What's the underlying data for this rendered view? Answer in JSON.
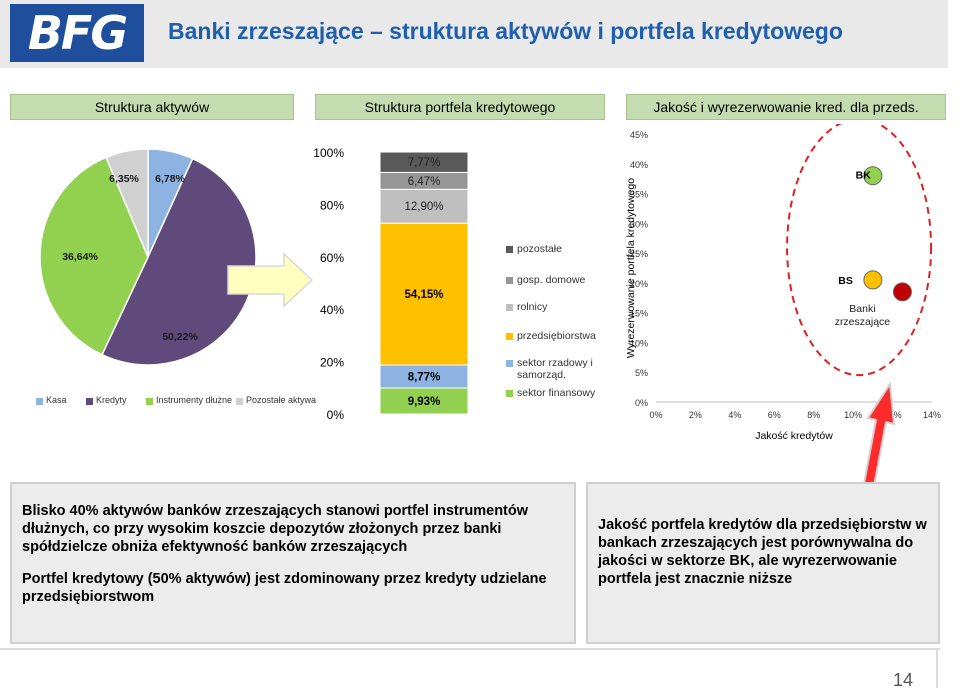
{
  "header": {
    "logo_text": "BFG",
    "title": "Banki zrzeszające – struktura aktywów i portfela kredytowego"
  },
  "section_headers": [
    "Struktura aktywów",
    "Struktura portfela kredytowego",
    "Jakość i wyrezerwowanie kred. dla przeds."
  ],
  "chart_data": [
    {
      "type": "pie",
      "labels": [
        "Kasa",
        "Kredyty",
        "Instrumenty dłużne",
        "Pozostałe aktywa"
      ],
      "values": [
        6.78,
        50.22,
        36.64,
        6.35
      ],
      "value_labels": [
        "6,78%",
        "50,22%",
        "36,64%",
        "6,35%"
      ],
      "colors": [
        "#8db3e2",
        "#604a7b",
        "#92d050",
        "#d0d0d0"
      ],
      "legend": "bottom"
    },
    {
      "type": "bar",
      "stacked": true,
      "categories": [
        ""
      ],
      "series": [
        {
          "name": "sektor finansowy",
          "values": [
            9.93
          ],
          "label": "9,93%",
          "color": "#92d050"
        },
        {
          "name": "sektor rzadowy i samorząd.",
          "values": [
            8.77
          ],
          "label": "8,77%",
          "color": "#8db3e2"
        },
        {
          "name": "przedsiębiorstwa",
          "values": [
            54.15
          ],
          "label": "54,15%",
          "color": "#ffc000"
        },
        {
          "name": "rolnicy",
          "values": [
            12.9
          ],
          "label": "12,90%",
          "color": "#bfbfbf"
        },
        {
          "name": "gosp. domowe",
          "values": [
            6.47
          ],
          "label": "6,47%",
          "color": "#969696"
        },
        {
          "name": "pozostałe",
          "values": [
            7.77
          ],
          "label": "7,77%",
          "color": "#595959"
        }
      ],
      "yticks": [
        "0%",
        "20%",
        "40%",
        "60%",
        "80%",
        "100%"
      ],
      "ylim": [
        0,
        100
      ],
      "legend": "right"
    },
    {
      "type": "scatter",
      "xlabel": "Jakość kredytów",
      "ylabel": "Wyrezerwowanie portfela kredytowego",
      "xticks": [
        "0%",
        "2%",
        "4%",
        "6%",
        "8%",
        "10%",
        "12%",
        "14%"
      ],
      "yticks": [
        "0%",
        "5%",
        "10%",
        "15%",
        "20%",
        "25%",
        "30%",
        "35%",
        "40%",
        "45%"
      ],
      "xlim": [
        0,
        14
      ],
      "ylim": [
        0,
        45
      ],
      "points": [
        {
          "label": "BK",
          "x": 11.0,
          "y": 38.0,
          "color": "#92d050"
        },
        {
          "label": "BS",
          "x": 11.0,
          "y": 20.5,
          "color": "#ffc000"
        },
        {
          "label": "Banki zrzeszające",
          "x": 12.5,
          "y": 18.5,
          "color": "#c00000"
        }
      ]
    }
  ],
  "notes": {
    "left": [
      "Blisko 40% aktywów banków zrzeszających stanowi portfel instrumentów dłużnych, co przy wysokim koszcie depozytów złożonych przez banki spółdzielcze obniża efektywność banków zrzeszających",
      "Portfel kredytowy (50% aktywów) jest zdominowany przez kredyty udzielane przedsiębiorstwom"
    ],
    "right": [
      "Jakość portfela kredytów dla przedsiębiorstw w bankach zrzeszających jest porównywalna do jakości w sektorze BK, ale wyrezerwowanie portfela jest znacznie niższe"
    ]
  },
  "page_number": "14"
}
